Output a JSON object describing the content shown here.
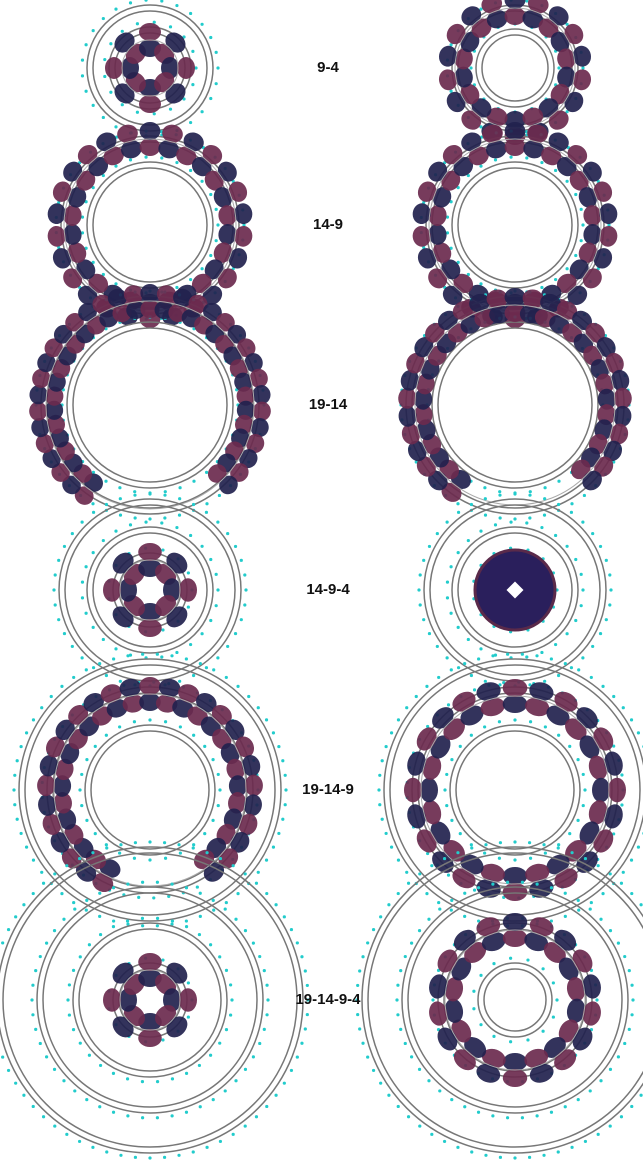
{
  "rows": [
    {
      "label": "9-4"
    },
    {
      "label": "14-9"
    },
    {
      "label": "19-14"
    },
    {
      "label": "14-9-4"
    },
    {
      "label": "19-14-9"
    },
    {
      "label": "19-14-9-4"
    }
  ]
}
